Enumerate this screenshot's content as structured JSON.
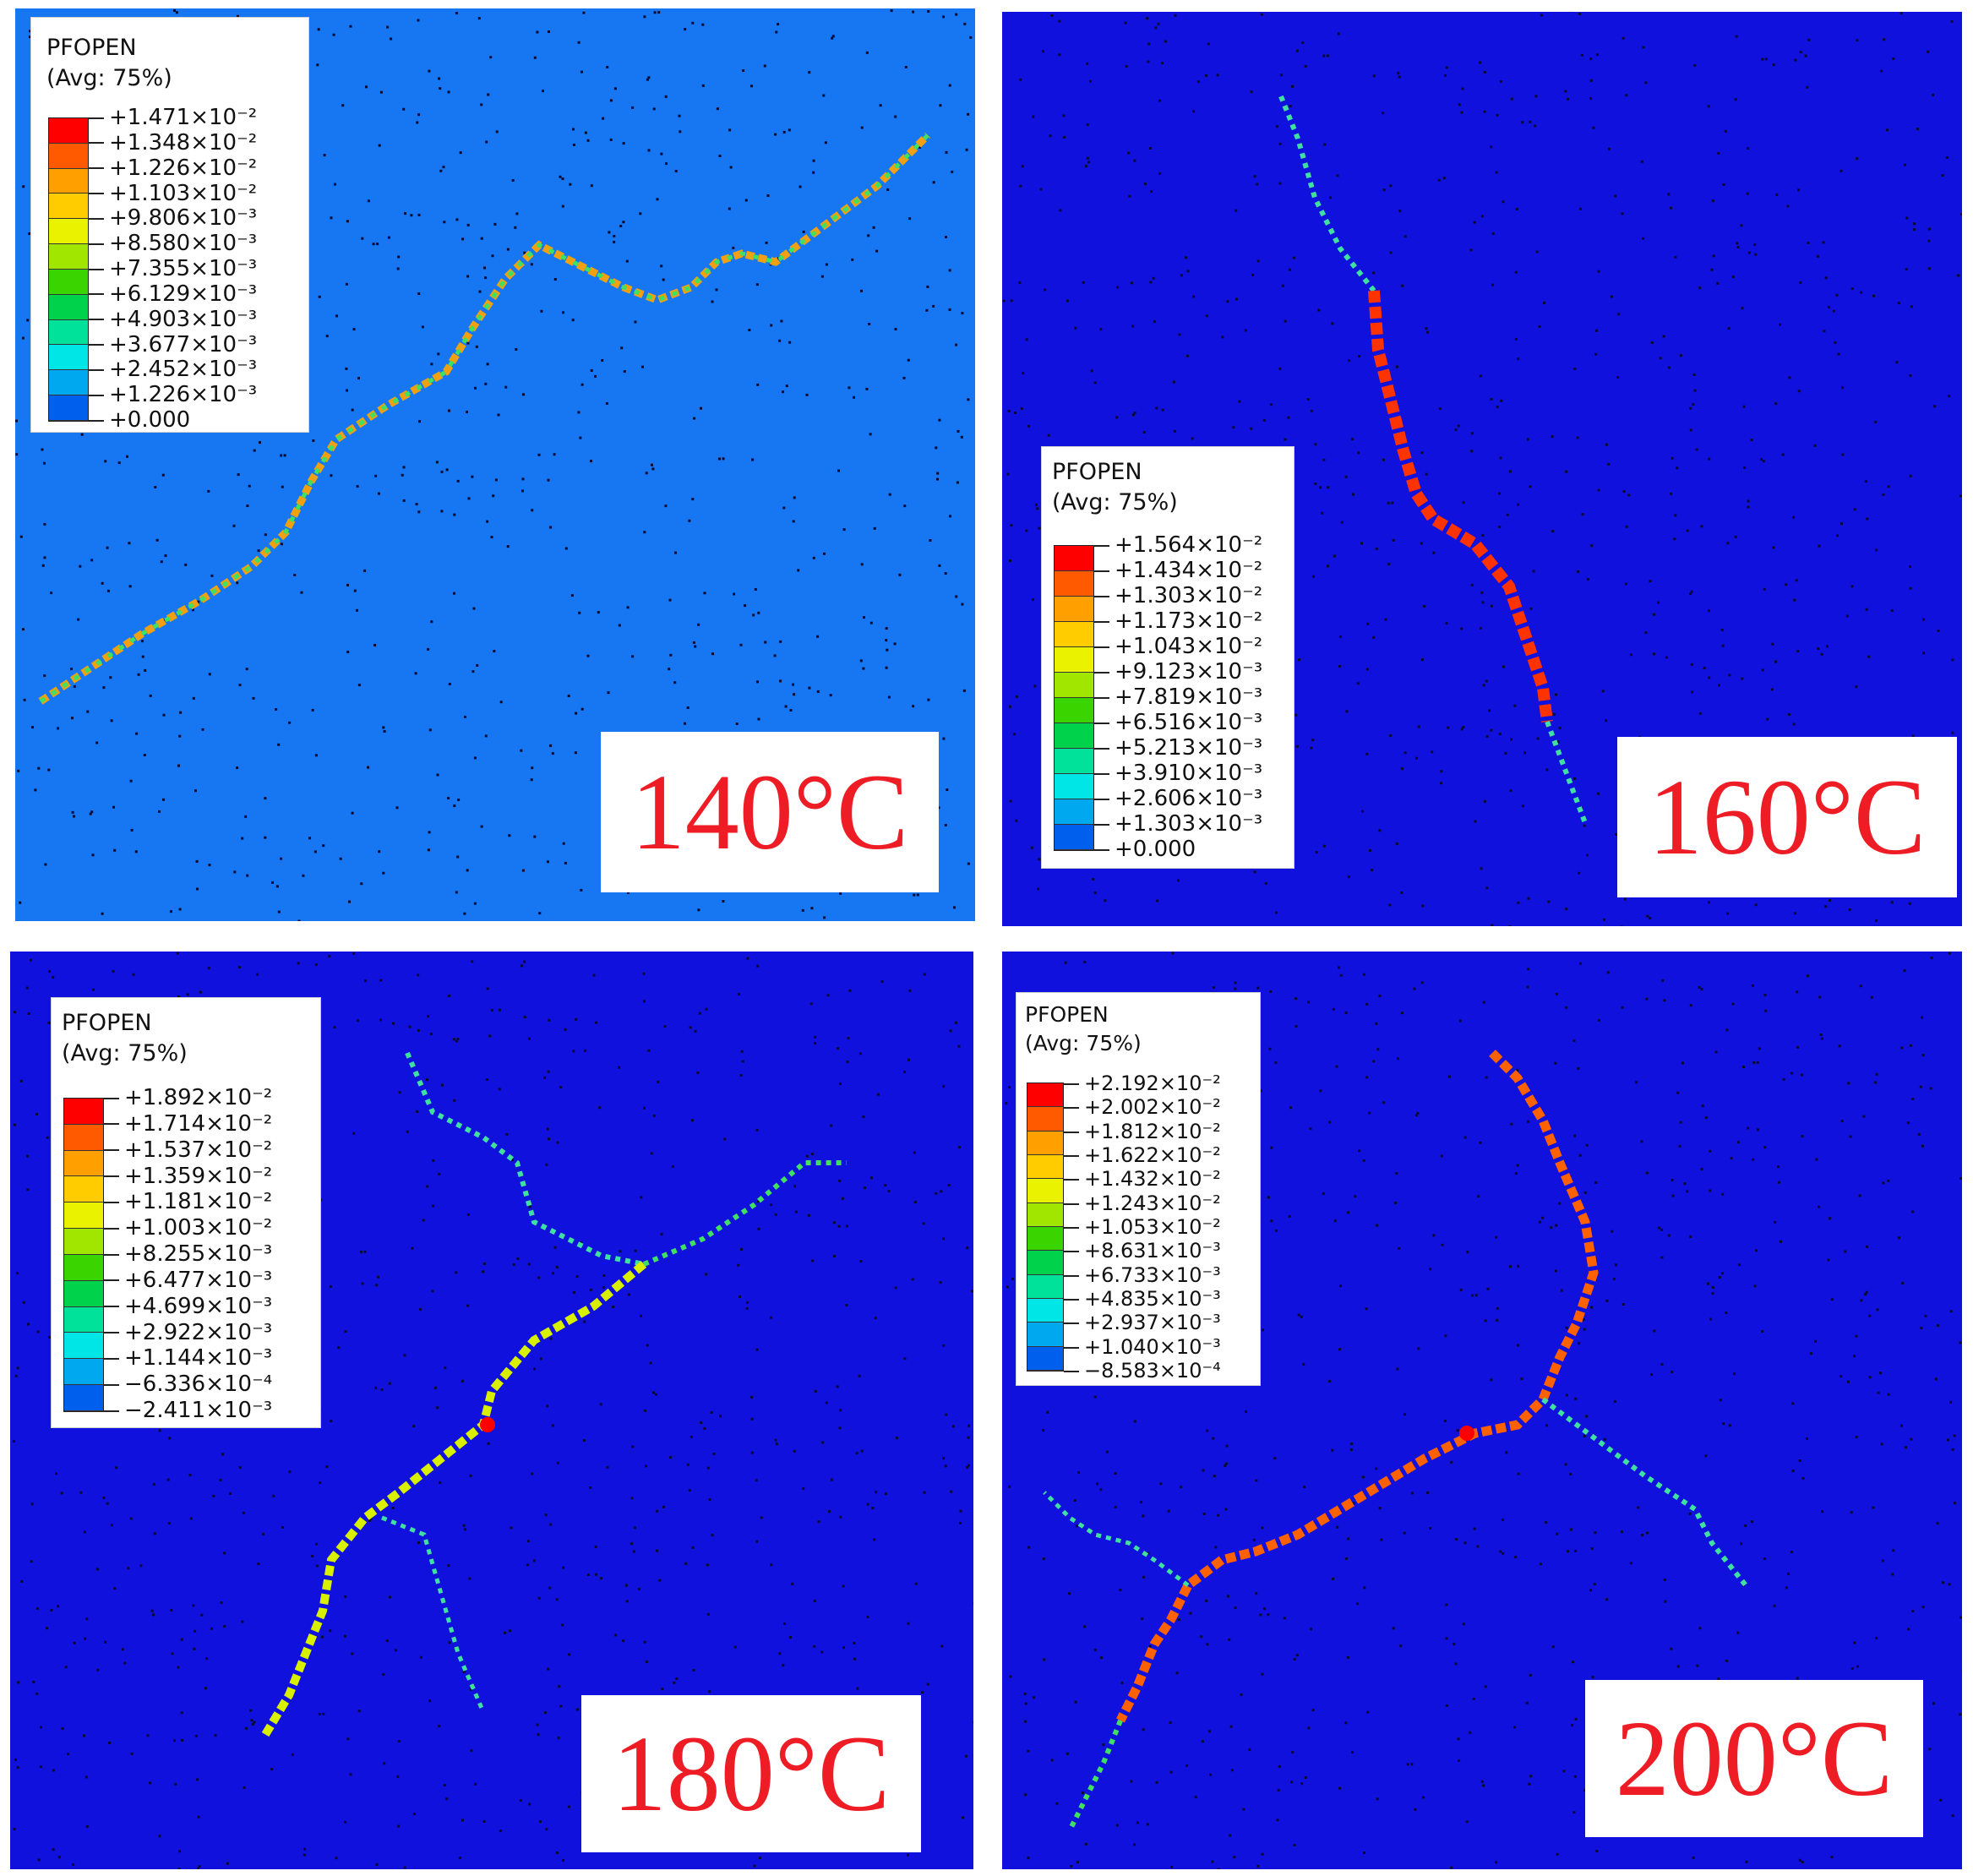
{
  "background_colors": {
    "p140": "#1777f2",
    "other": "#1111dd"
  },
  "panels": [
    {
      "id": "p140",
      "temperature": "140°C",
      "legend": {
        "title": "PFOPEN",
        "subtitle": "(Avg: 75%)",
        "values": [
          "+1.471×10⁻²",
          "+1.348×10⁻²",
          "+1.226×10⁻²",
          "+1.103×10⁻²",
          "+9.806×10⁻³",
          "+8.580×10⁻³",
          "+7.355×10⁻³",
          "+6.129×10⁻³",
          "+4.903×10⁻³",
          "+3.677×10⁻³",
          "+2.452×10⁻³",
          "+1.226×10⁻³",
          "+0.000"
        ]
      }
    },
    {
      "id": "p160",
      "temperature": "160°C",
      "legend": {
        "title": "PFOPEN",
        "subtitle": "(Avg: 75%)",
        "values": [
          "+1.564×10⁻²",
          "+1.434×10⁻²",
          "+1.303×10⁻²",
          "+1.173×10⁻²",
          "+1.043×10⁻²",
          "+9.123×10⁻³",
          "+7.819×10⁻³",
          "+6.516×10⁻³",
          "+5.213×10⁻³",
          "+3.910×10⁻³",
          "+2.606×10⁻³",
          "+1.303×10⁻³",
          "+0.000"
        ]
      }
    },
    {
      "id": "p180",
      "temperature": "180°C",
      "legend": {
        "title": "PFOPEN",
        "subtitle": "(Avg: 75%)",
        "values": [
          "+1.892×10⁻²",
          "+1.714×10⁻²",
          "+1.537×10⁻²",
          "+1.359×10⁻²",
          "+1.181×10⁻²",
          "+1.003×10⁻²",
          "+8.255×10⁻³",
          "+6.477×10⁻³",
          "+4.699×10⁻³",
          "+2.922×10⁻³",
          "+1.144×10⁻³",
          "−6.336×10⁻⁴",
          "−2.411×10⁻³"
        ]
      }
    },
    {
      "id": "p200",
      "temperature": "200°C",
      "legend": {
        "title": "PFOPEN",
        "subtitle": "(Avg: 75%)",
        "values": [
          "+2.192×10⁻²",
          "+2.002×10⁻²",
          "+1.812×10⁻²",
          "+1.622×10⁻²",
          "+1.432×10⁻²",
          "+1.243×10⁻²",
          "+1.053×10⁻²",
          "+8.631×10⁻³",
          "+6.733×10⁻³",
          "+4.835×10⁻³",
          "+2.937×10⁻³",
          "+1.040×10⁻³",
          "−8.583×10⁻⁴"
        ]
      }
    }
  ],
  "colorbar_colors": [
    "#ff0000",
    "#ff5a00",
    "#ffa000",
    "#ffcc00",
    "#eaf200",
    "#a0e600",
    "#3ad400",
    "#00d24c",
    "#00e29a",
    "#00e6e6",
    "#00a8f0",
    "#0060ee",
    "#0014e6"
  ]
}
